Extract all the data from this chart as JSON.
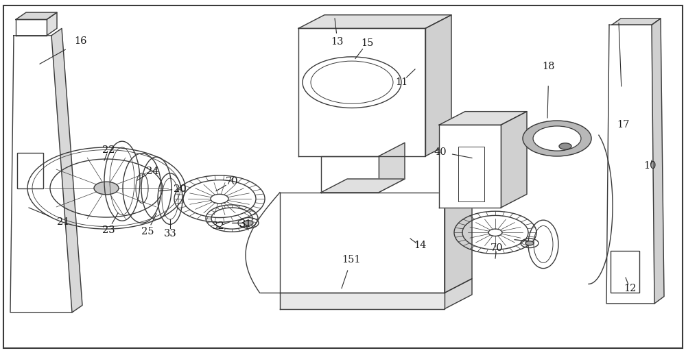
{
  "title": "",
  "background_color": "#ffffff",
  "line_color": "#3a3a3a",
  "label_color": "#1a1a1a",
  "fig_width": 10.0,
  "fig_height": 5.18
}
